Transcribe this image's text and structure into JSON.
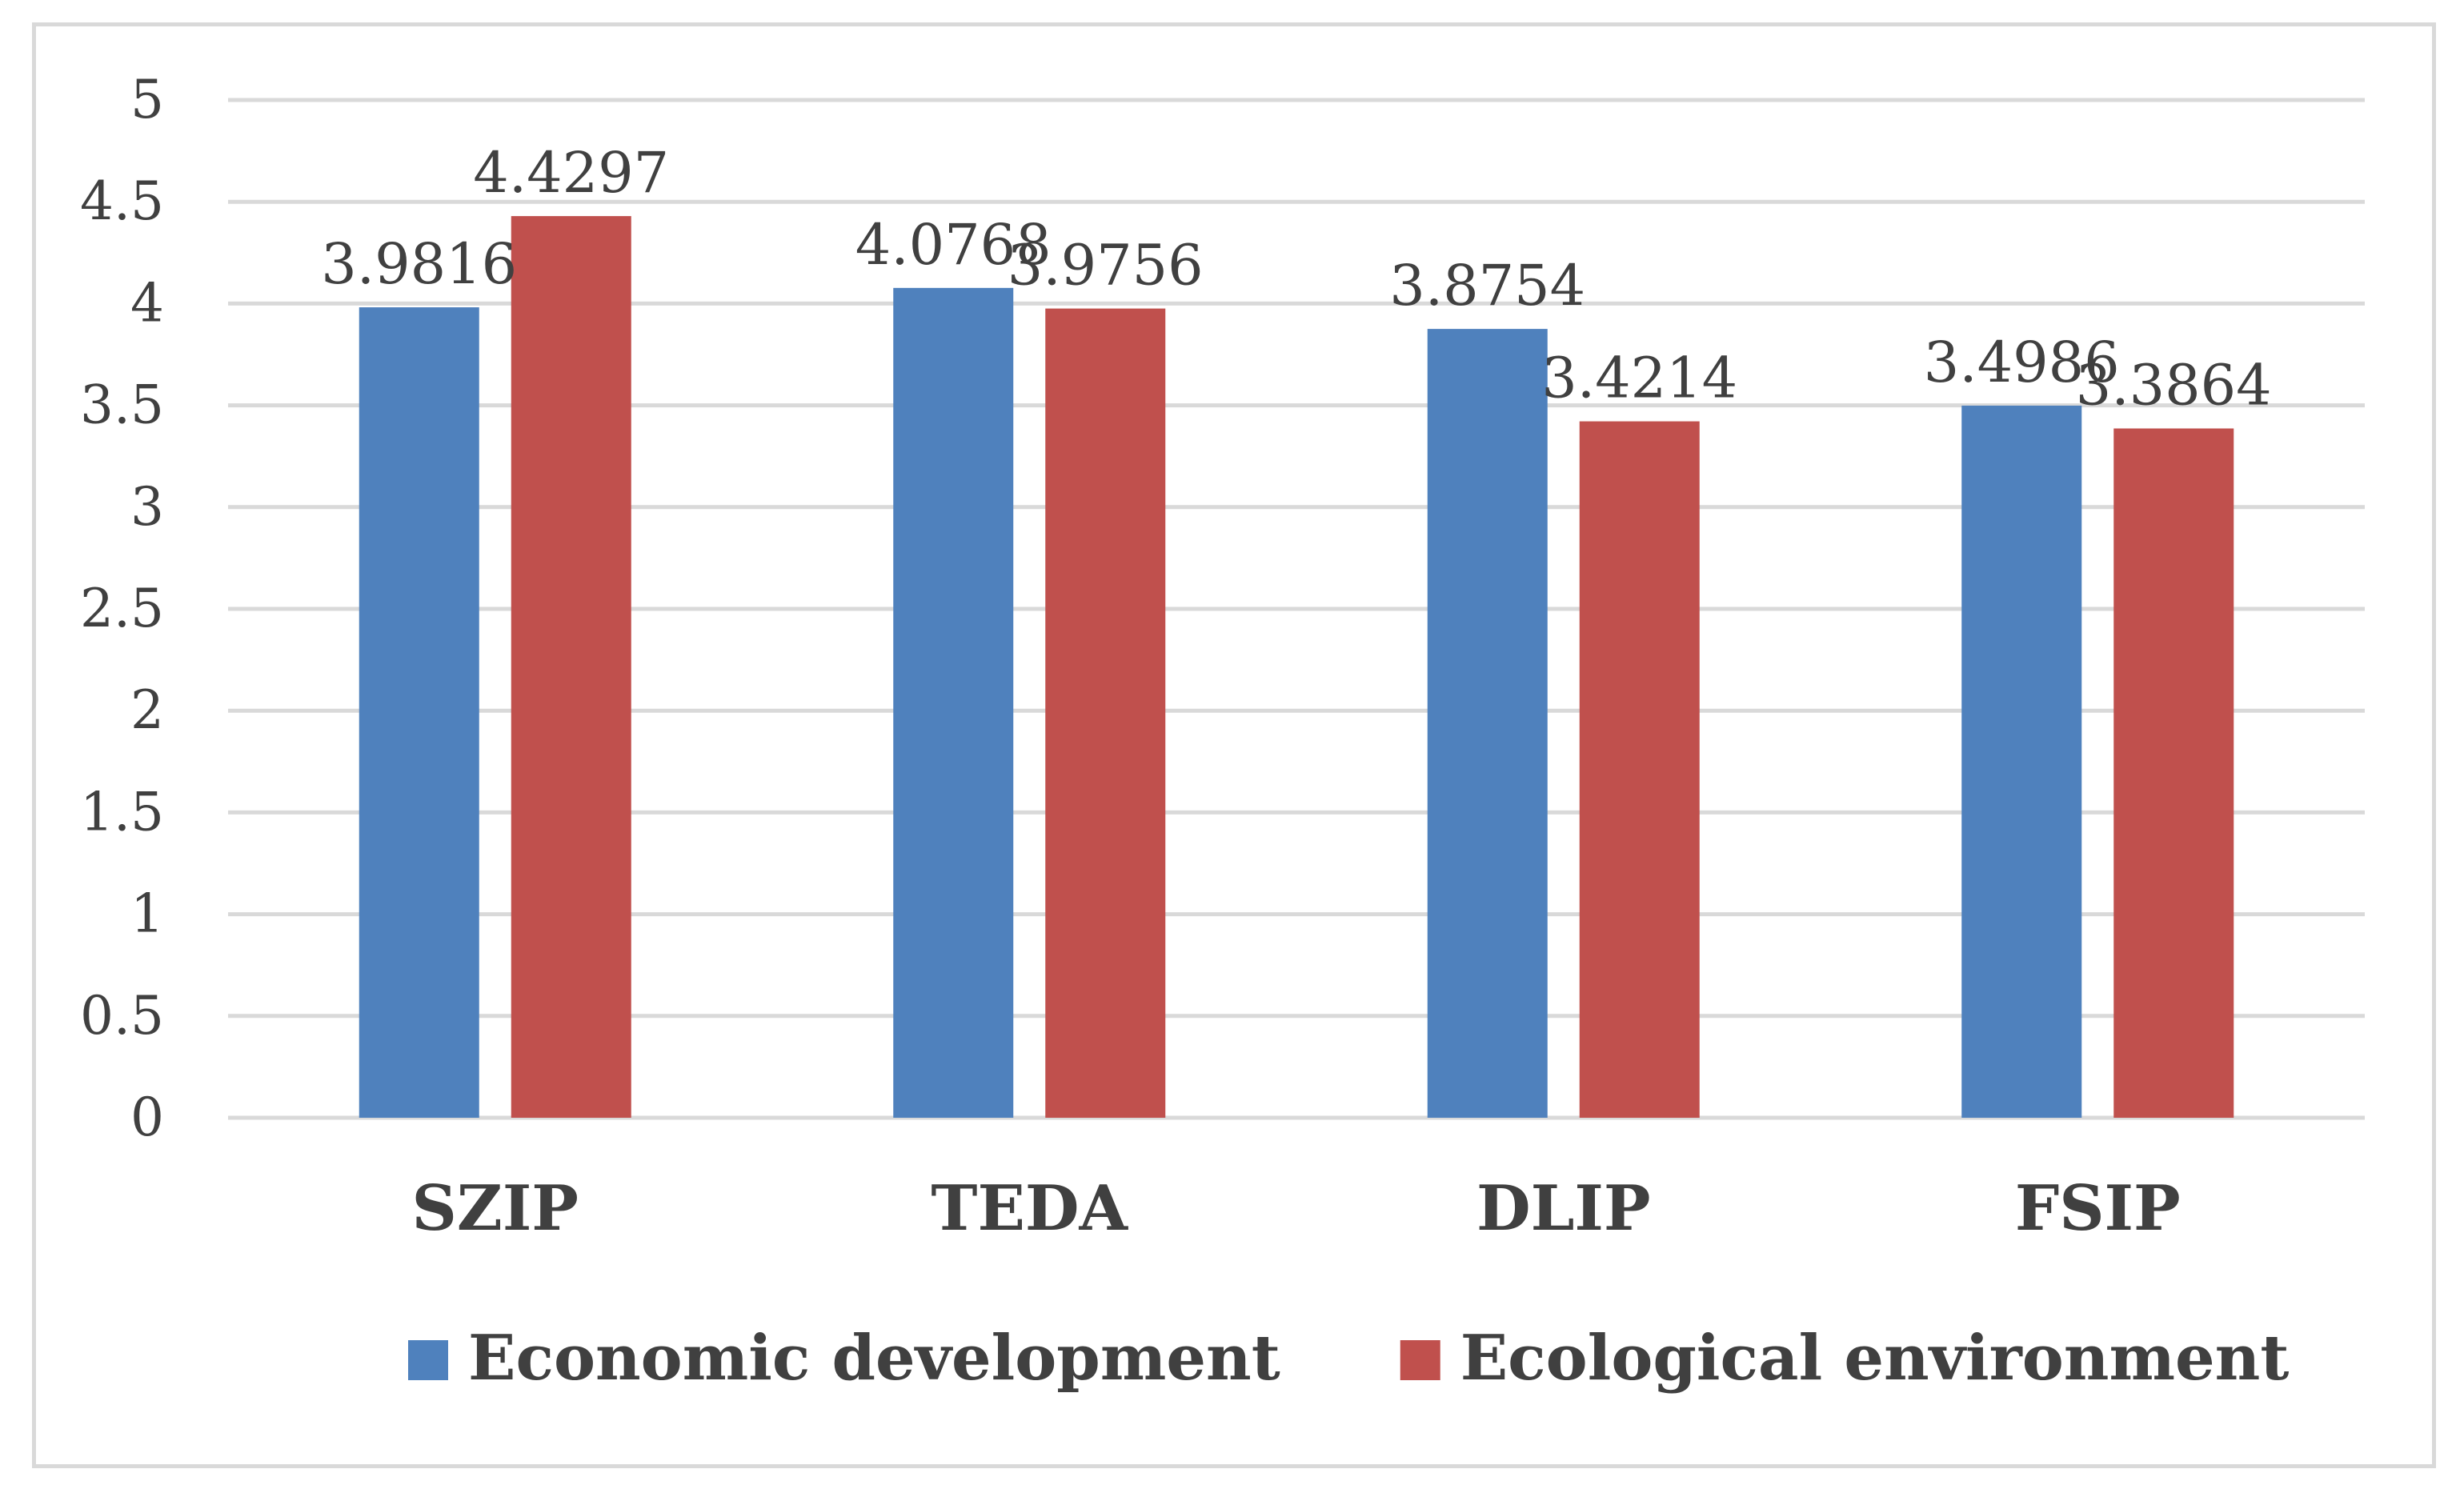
{
  "chart_data": {
    "type": "bar",
    "title": "",
    "xlabel": "",
    "ylabel": "",
    "categories": [
      "SZIP",
      "TEDA",
      "DLIP",
      "FSIP"
    ],
    "series": [
      {
        "name": "Economic development",
        "color": "#4f81bd",
        "values": [
          3.9816,
          4.0768,
          3.8754,
          3.4986
        ],
        "labels": [
          "3.9816",
          "4.0768",
          "3.8754",
          "3.4986"
        ]
      },
      {
        "name": "Ecological environment",
        "color": "#c0504d",
        "values": [
          4.4297,
          3.9756,
          3.4214,
          3.3864
        ],
        "labels": [
          "4.4297",
          "3.9756",
          "3.4214",
          "3.3864"
        ]
      }
    ],
    "ylim": [
      0,
      5
    ],
    "yticks": [
      "0",
      "0.5",
      "1",
      "1.5",
      "2",
      "2.5",
      "3",
      "3.5",
      "4",
      "4.5",
      "5"
    ],
    "grid": true,
    "legend_position": "bottom"
  }
}
